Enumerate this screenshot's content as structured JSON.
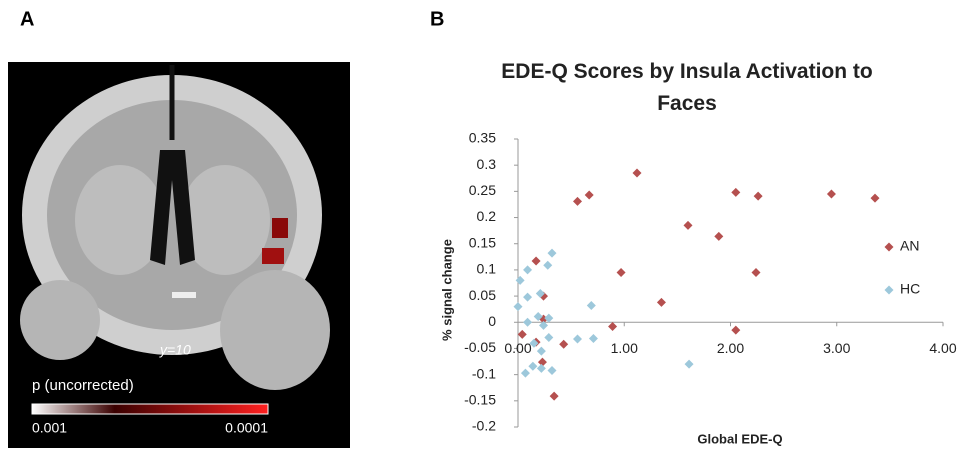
{
  "panel_a": {
    "label": "A",
    "slice_label": "y=10",
    "colorbar_title": "p (uncorrected)",
    "colorbar_min": "0.001",
    "colorbar_max": "0.0001"
  },
  "panel_b": {
    "label": "B"
  },
  "chart_data": {
    "type": "scatter",
    "title": "EDE-Q Scores by Insula Activation to Faces",
    "x_label": "Global EDE-Q",
    "y_label": "% signal change",
    "xlim": [
      0,
      4
    ],
    "ylim": [
      -0.2,
      0.35
    ],
    "xticks": [
      {
        "value": 0,
        "label": "0.00"
      },
      {
        "value": 1,
        "label": "1.00"
      },
      {
        "value": 2,
        "label": "2.00"
      },
      {
        "value": 3,
        "label": "3.00"
      },
      {
        "value": 4,
        "label": "4.00"
      }
    ],
    "yticks": [
      -0.2,
      -0.15,
      -0.1,
      -0.05,
      0,
      0.05,
      0.1,
      0.15,
      0.2,
      0.25,
      0.3,
      0.35
    ],
    "grid": false,
    "legend": "right",
    "series": [
      {
        "name": "AN",
        "color": "#b5504f",
        "x": [
          1.12,
          0.67,
          0.56,
          2.05,
          2.26,
          2.95,
          3.36,
          1.6,
          1.89,
          0.17,
          0.97,
          2.24,
          1.35,
          0.24,
          0.24,
          0.04,
          0.89,
          2.05,
          0.17,
          0.23,
          0.43,
          0.34
        ],
        "values": [
          0.285,
          0.243,
          0.231,
          0.248,
          0.241,
          0.245,
          0.237,
          0.185,
          0.164,
          0.117,
          0.095,
          0.095,
          0.038,
          0.05,
          0.006,
          -0.023,
          -0.008,
          -0.015,
          -0.038,
          -0.076,
          -0.042,
          -0.141
        ]
      },
      {
        "name": "HC",
        "color": "#9dc8db",
        "x": [
          0.32,
          0.28,
          0.09,
          0.02,
          0.21,
          0.09,
          0.0,
          0.19,
          0.29,
          0.09,
          0.69,
          0.24,
          0.15,
          0.22,
          0.29,
          0.56,
          0.71,
          1.61,
          0.07,
          0.22,
          0.32,
          0.14
        ],
        "values": [
          0.132,
          0.109,
          0.1,
          0.08,
          0.055,
          0.048,
          0.03,
          0.011,
          0.008,
          0.0,
          0.032,
          -0.006,
          -0.04,
          -0.055,
          -0.029,
          -0.032,
          -0.031,
          -0.08,
          -0.097,
          -0.088,
          -0.092,
          -0.084
        ]
      }
    ]
  }
}
